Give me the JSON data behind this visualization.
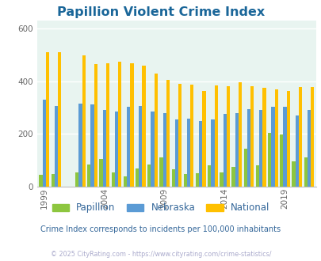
{
  "title": "Papillion Violent Crime Index",
  "years": [
    1999,
    2000,
    2001,
    2002,
    2003,
    2004,
    2005,
    2006,
    2007,
    2008,
    2009,
    2010,
    2011,
    2012,
    2013,
    2014,
    2015,
    2016,
    2017,
    2018,
    2019,
    2020,
    2021
  ],
  "papillion": [
    45,
    48,
    0,
    55,
    85,
    105,
    55,
    38,
    68,
    85,
    112,
    65,
    48,
    50,
    80,
    55,
    75,
    145,
    80,
    205,
    198,
    95,
    110
  ],
  "nebraska": [
    330,
    308,
    0,
    315,
    313,
    290,
    285,
    305,
    308,
    285,
    280,
    255,
    258,
    250,
    255,
    275,
    278,
    295,
    290,
    302,
    305,
    270,
    290
  ],
  "national": [
    510,
    510,
    0,
    500,
    465,
    470,
    475,
    470,
    460,
    430,
    405,
    390,
    387,
    365,
    385,
    382,
    398,
    383,
    375,
    370,
    365,
    380,
    380
  ],
  "papillion_color": "#8dc63f",
  "nebraska_color": "#5b9bd5",
  "national_color": "#ffc000",
  "bg_color": "#e8f4f0",
  "title_color": "#1a6699",
  "subtitle": "Crime Index corresponds to incidents per 100,000 inhabitants",
  "subtitle_color": "#336699",
  "copyright": "© 2025 CityRating.com - https://www.cityrating.com/crime-statistics/",
  "copyright_color": "#aaaacc",
  "yticks": [
    0,
    200,
    400,
    600
  ],
  "ytick_labels": [
    "0",
    "200",
    "400",
    "600"
  ],
  "ylim": [
    0,
    630
  ],
  "xlabel_ticks": [
    1999,
    2004,
    2009,
    2014,
    2019
  ]
}
